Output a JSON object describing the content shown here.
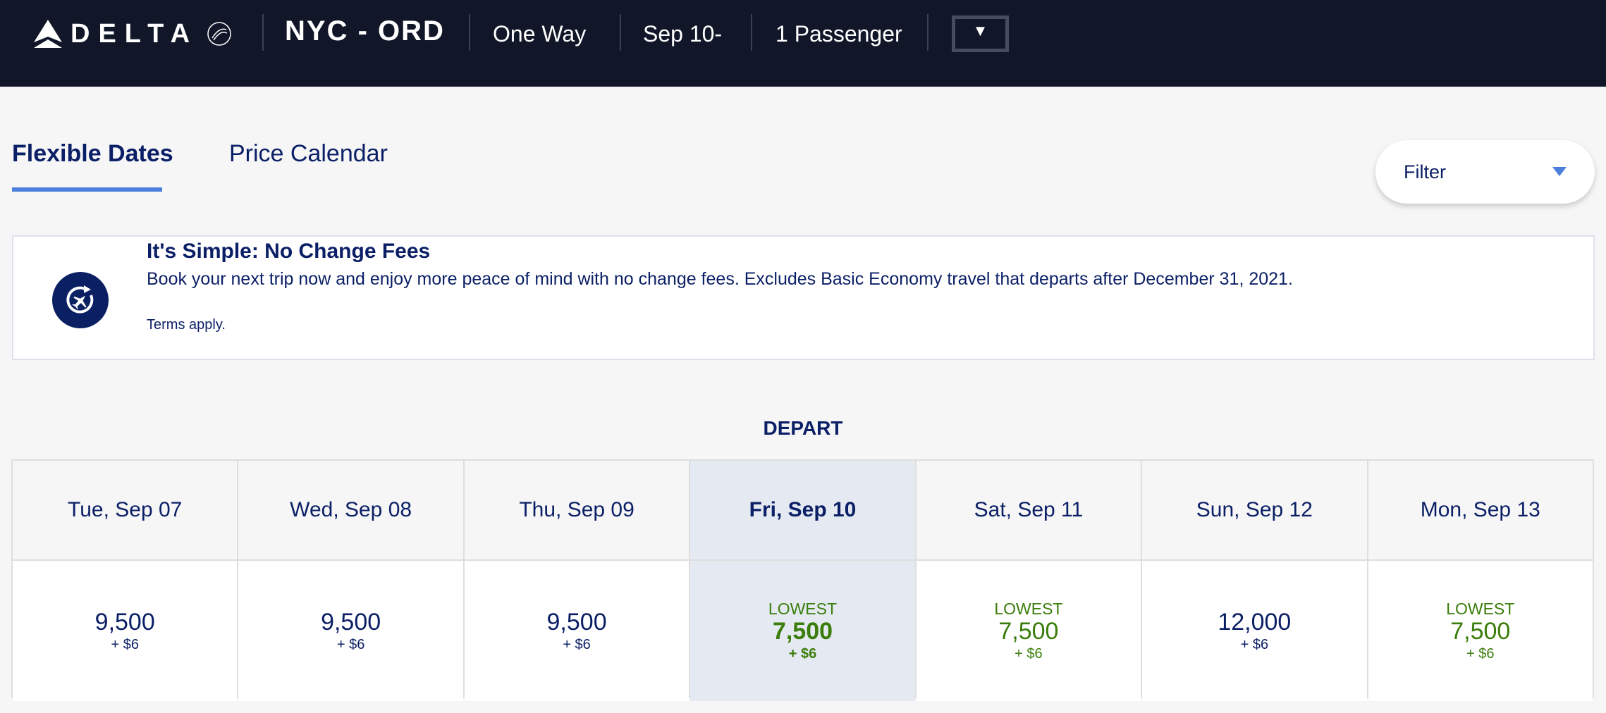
{
  "header": {
    "logo": "DELTA",
    "route": "NYC - ORD",
    "trip_type": "One Way",
    "date": "Sep 10-",
    "passengers": "1 Passenger",
    "expand_icon": "caret-down"
  },
  "tabs": [
    {
      "label": "Flexible Dates",
      "active": true
    },
    {
      "label": "Price Calendar",
      "active": false
    }
  ],
  "filter": {
    "label": "Filter",
    "accent": "#4a7fdb"
  },
  "banner": {
    "title": "It's Simple: No Change Fees",
    "body": "Book your next trip now and enjoy more peace of mind with no change fees. Excludes Basic Economy travel that departs after December 31, 2021.",
    "terms": "Terms apply.",
    "icon": "plane-refresh-icon"
  },
  "depart_label": "DEPART",
  "colors": {
    "header_bg": "#111729",
    "navy": "#0b1f66",
    "lowest_green": "#3a7d0a",
    "selected_bg": "#e5eaf2"
  },
  "days": [
    {
      "label": "Tue, Sep 07",
      "miles": "9,500",
      "fee": "+ $6",
      "lowest": false
    },
    {
      "label": "Wed, Sep 08",
      "miles": "9,500",
      "fee": "+ $6",
      "lowest": false
    },
    {
      "label": "Thu, Sep 09",
      "miles": "9,500",
      "fee": "+ $6",
      "lowest": false
    },
    {
      "label": "Fri, Sep 10",
      "miles": "7,500",
      "fee": "+ $6",
      "lowest": true,
      "lowest_label": "LOWEST",
      "selected": true
    },
    {
      "label": "Sat, Sep 11",
      "miles": "7,500",
      "fee": "+ $6",
      "lowest": true,
      "lowest_label": "LOWEST"
    },
    {
      "label": "Sun, Sep 12",
      "miles": "12,000",
      "fee": "+ $6",
      "lowest": false
    },
    {
      "label": "Mon, Sep 13",
      "miles": "7,500",
      "fee": "+ $6",
      "lowest": true,
      "lowest_label": "LOWEST"
    }
  ]
}
